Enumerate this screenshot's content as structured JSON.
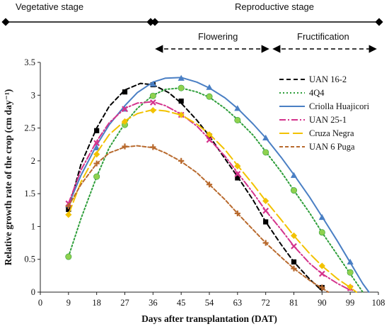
{
  "stages": {
    "vegetative": "Vegetative stage",
    "reproductive": "Reproductive stage",
    "flowering": "Flowering",
    "fructification": "Fructification"
  },
  "chart_data": {
    "type": "line",
    "xlabel": "Days after transplantation (DAT)",
    "ylabel": "Relative growth rate of  the crop (cm day⁻¹)",
    "xlim": [
      0,
      108
    ],
    "ylim": [
      0,
      3.5
    ],
    "xticks": [
      0,
      9,
      18,
      27,
      36,
      45,
      54,
      63,
      72,
      81,
      90,
      99,
      108
    ],
    "yticks": [
      0,
      0.5,
      1,
      1.5,
      2,
      2.5,
      3,
      3.5
    ],
    "ytick_labels": [
      "0",
      "0.5",
      "1",
      "1.5",
      "2",
      "2.5",
      "3",
      "3.5"
    ],
    "grid": false,
    "legend_position": "top-right",
    "series": [
      {
        "name": "UAN 16-2",
        "color": "#000000",
        "dash": "6,4",
        "marker": "square",
        "x": [
          9,
          18,
          27,
          36,
          45,
          54,
          63,
          72,
          81,
          90
        ],
        "values": [
          1.26,
          2.46,
          3.05,
          3.16,
          2.91,
          2.38,
          1.74,
          1.07,
          0.46,
          0.07
        ],
        "curve": [
          [
            9,
            1.26
          ],
          [
            13,
            1.95
          ],
          [
            18,
            2.5
          ],
          [
            22,
            2.83
          ],
          [
            27,
            3.08
          ],
          [
            32,
            3.18
          ],
          [
            36,
            3.16
          ],
          [
            41,
            3.04
          ],
          [
            45,
            2.88
          ],
          [
            50,
            2.62
          ],
          [
            54,
            2.38
          ],
          [
            58,
            2.1
          ],
          [
            63,
            1.76
          ],
          [
            68,
            1.4
          ],
          [
            72,
            1.07
          ],
          [
            77,
            0.72
          ],
          [
            81,
            0.46
          ],
          [
            86,
            0.2
          ],
          [
            90,
            0.02
          ]
        ]
      },
      {
        "name": "4Q4",
        "color": "#2e9e3a",
        "dash": "2,3",
        "marker": "circle",
        "x": [
          9,
          18,
          27,
          36,
          45,
          54,
          63,
          72,
          81,
          90,
          99
        ],
        "values": [
          0.54,
          1.76,
          2.55,
          2.99,
          3.11,
          2.98,
          2.62,
          2.13,
          1.55,
          0.91,
          0.3
        ],
        "curve": [
          [
            9,
            0.54
          ],
          [
            13,
            1.12
          ],
          [
            18,
            1.76
          ],
          [
            22,
            2.2
          ],
          [
            27,
            2.57
          ],
          [
            31,
            2.8
          ],
          [
            36,
            3.0
          ],
          [
            40,
            3.09
          ],
          [
            45,
            3.11
          ],
          [
            50,
            3.05
          ],
          [
            54,
            2.97
          ],
          [
            59,
            2.8
          ],
          [
            63,
            2.63
          ],
          [
            68,
            2.39
          ],
          [
            72,
            2.14
          ],
          [
            77,
            1.83
          ],
          [
            81,
            1.55
          ],
          [
            86,
            1.21
          ],
          [
            90,
            0.91
          ],
          [
            95,
            0.56
          ],
          [
            99,
            0.28
          ],
          [
            103,
            0.0
          ]
        ]
      },
      {
        "name": "Criolla Huajicori",
        "color": "#4a7fc4",
        "dash": "",
        "marker": "triangle",
        "x": [
          9,
          18,
          27,
          36,
          45,
          54,
          63,
          72,
          81,
          90,
          99
        ],
        "values": [
          1.33,
          2.2,
          2.79,
          3.17,
          3.26,
          3.12,
          2.8,
          2.35,
          1.78,
          1.14,
          0.46
        ],
        "curve": [
          [
            9,
            1.33
          ],
          [
            13,
            1.78
          ],
          [
            18,
            2.24
          ],
          [
            22,
            2.55
          ],
          [
            27,
            2.84
          ],
          [
            31,
            3.04
          ],
          [
            36,
            3.2
          ],
          [
            40,
            3.26
          ],
          [
            45,
            3.27
          ],
          [
            50,
            3.2
          ],
          [
            54,
            3.11
          ],
          [
            59,
            2.96
          ],
          [
            63,
            2.8
          ],
          [
            68,
            2.56
          ],
          [
            72,
            2.35
          ],
          [
            77,
            2.05
          ],
          [
            81,
            1.79
          ],
          [
            86,
            1.45
          ],
          [
            90,
            1.15
          ],
          [
            95,
            0.77
          ],
          [
            99,
            0.45
          ],
          [
            103,
            0.13
          ],
          [
            105,
            0.0
          ]
        ]
      },
      {
        "name": "UAN 25-1",
        "color": "#d4338c",
        "dash": "9,3,2,3",
        "marker": "x",
        "x": [
          9,
          18,
          27,
          36,
          45,
          54,
          63,
          72,
          81,
          90,
          99
        ],
        "values": [
          1.35,
          2.27,
          2.79,
          2.89,
          2.7,
          2.32,
          1.8,
          1.24,
          0.7,
          0.28,
          0.06
        ],
        "curve": [
          [
            9,
            1.35
          ],
          [
            13,
            1.86
          ],
          [
            18,
            2.3
          ],
          [
            22,
            2.58
          ],
          [
            27,
            2.8
          ],
          [
            31,
            2.88
          ],
          [
            36,
            2.9
          ],
          [
            40,
            2.84
          ],
          [
            45,
            2.71
          ],
          [
            50,
            2.53
          ],
          [
            54,
            2.33
          ],
          [
            59,
            2.07
          ],
          [
            63,
            1.82
          ],
          [
            68,
            1.51
          ],
          [
            72,
            1.24
          ],
          [
            77,
            0.95
          ],
          [
            81,
            0.7
          ],
          [
            86,
            0.44
          ],
          [
            90,
            0.28
          ],
          [
            95,
            0.13
          ],
          [
            99,
            0.03
          ]
        ]
      },
      {
        "name": "Cruza Negra",
        "color": "#f2c200",
        "dash": "14,5",
        "marker": "diamond",
        "x": [
          9,
          18,
          27,
          36,
          45,
          54,
          63,
          72,
          81,
          90,
          99
        ],
        "values": [
          1.18,
          2.1,
          2.6,
          2.77,
          2.7,
          2.4,
          1.92,
          1.39,
          0.86,
          0.4,
          0.08
        ],
        "curve": [
          [
            9,
            1.18
          ],
          [
            13,
            1.68
          ],
          [
            18,
            2.12
          ],
          [
            22,
            2.4
          ],
          [
            27,
            2.61
          ],
          [
            31,
            2.72
          ],
          [
            36,
            2.78
          ],
          [
            40,
            2.76
          ],
          [
            45,
            2.7
          ],
          [
            50,
            2.56
          ],
          [
            54,
            2.41
          ],
          [
            59,
            2.17
          ],
          [
            63,
            1.93
          ],
          [
            68,
            1.64
          ],
          [
            72,
            1.39
          ],
          [
            77,
            1.1
          ],
          [
            81,
            0.86
          ],
          [
            86,
            0.59
          ],
          [
            90,
            0.4
          ],
          [
            95,
            0.2
          ],
          [
            99,
            0.07
          ],
          [
            101,
            0.0
          ]
        ]
      },
      {
        "name": "UAN 6 Puga",
        "color": "#b86a2e",
        "dash": "5,3",
        "marker": "plus",
        "x": [
          9,
          18,
          27,
          36,
          45,
          54,
          63,
          72,
          81,
          90
        ],
        "values": [
          1.31,
          1.96,
          2.22,
          2.21,
          2.0,
          1.64,
          1.2,
          0.75,
          0.36,
          0.07
        ],
        "curve": [
          [
            9,
            1.31
          ],
          [
            13,
            1.64
          ],
          [
            18,
            1.96
          ],
          [
            22,
            2.12
          ],
          [
            27,
            2.21
          ],
          [
            31,
            2.23
          ],
          [
            36,
            2.2
          ],
          [
            40,
            2.12
          ],
          [
            45,
            1.99
          ],
          [
            50,
            1.82
          ],
          [
            54,
            1.64
          ],
          [
            59,
            1.41
          ],
          [
            63,
            1.2
          ],
          [
            68,
            0.95
          ],
          [
            72,
            0.75
          ],
          [
            77,
            0.53
          ],
          [
            81,
            0.36
          ],
          [
            86,
            0.18
          ],
          [
            90,
            0.06
          ],
          [
            92,
            0.0
          ]
        ]
      }
    ]
  }
}
